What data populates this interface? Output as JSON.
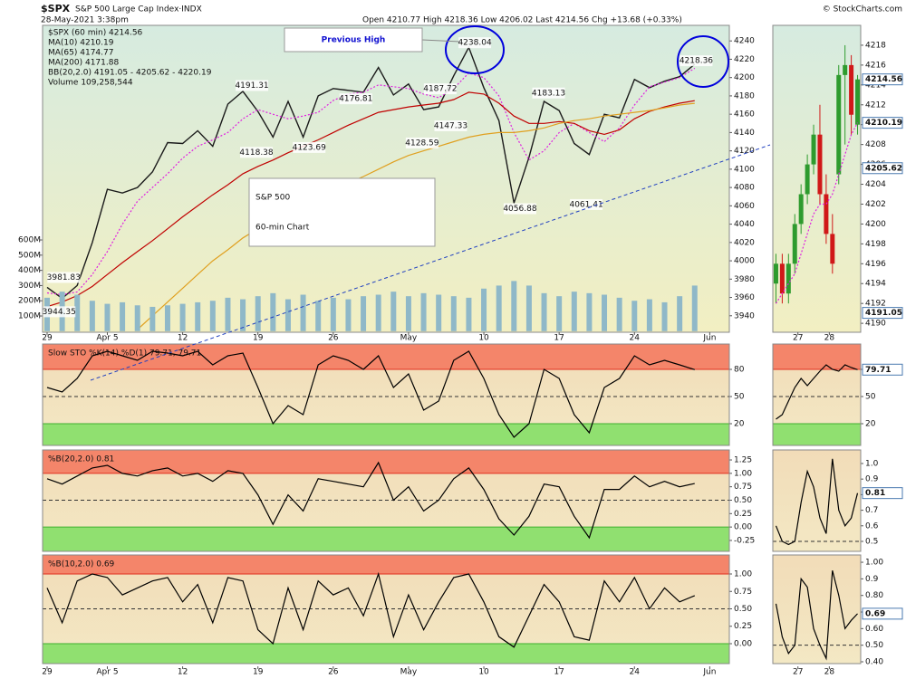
{
  "chart_data": [
    {
      "type": "line",
      "title": "$SPX",
      "subtitle": "S&P 500 Large Cap Index·INDX",
      "date": "28-May-2021 3:38pm",
      "quote": "Open 4210.77  High 4218.36  Low 4206.02  Last 4214.56  Chg +13.68 (+0.33%)",
      "credit": "© StockCharts.com",
      "bb_label": "BB(20,2.0) 4191.05 - 4205.62 - 4220.19",
      "callouts": [
        "Previous High",
        "S&P 500",
        "60-min Chart"
      ],
      "x": [
        0,
        1,
        2,
        3,
        4,
        5,
        6,
        7,
        8,
        9,
        10,
        11,
        12,
        13,
        14,
        15,
        16,
        17,
        18,
        19,
        20,
        21,
        22,
        23,
        24,
        25,
        26,
        27,
        28,
        29,
        30,
        31,
        32,
        33,
        34,
        35,
        36,
        37,
        38,
        39,
        40,
        41,
        42,
        43
      ],
      "xlim": [
        -0.3,
        45.3
      ],
      "xticks": [
        {
          "value": 0,
          "label": "29"
        },
        {
          "value": 4,
          "label": "Apr 5"
        },
        {
          "value": 9,
          "label": "12"
        },
        {
          "value": 14,
          "label": "19"
        },
        {
          "value": 19,
          "label": "26"
        },
        {
          "value": 24,
          "label": "May"
        },
        {
          "value": 29,
          "label": "10"
        },
        {
          "value": 34,
          "label": "17"
        },
        {
          "value": 39,
          "label": "24"
        },
        {
          "value": 44,
          "label": "Jun"
        }
      ],
      "ylim": [
        3922,
        4257
      ],
      "yticks": [
        3940,
        3960,
        3980,
        4000,
        4020,
        4040,
        4060,
        4080,
        4100,
        4120,
        4140,
        4160,
        4180,
        4200,
        4220,
        4240
      ],
      "y2lim": [
        -7000000,
        2011000000
      ],
      "y2ticks": [
        {
          "value": 100000000,
          "label": "100M"
        },
        {
          "value": 200000000,
          "label": "200M"
        },
        {
          "value": 300000000,
          "label": "300M"
        },
        {
          "value": 400000000,
          "label": "400M"
        },
        {
          "value": 500000000,
          "label": "500M"
        },
        {
          "value": 600000000,
          "label": "600M"
        }
      ],
      "series": [
        {
          "name": "$SPX (60 min) 4214.56",
          "color": "#1a1a1a",
          "values": [
            3971,
            3959,
            3973,
            4020,
            4078,
            4074,
            4080,
            4097,
            4129,
            4128,
            4142,
            4125,
            4171,
            4185,
            4163,
            4135,
            4174,
            4135,
            4180,
            4188,
            4186,
            4184,
            4211,
            4181,
            4193,
            4165,
            4168,
            4202,
            4233,
            4189,
            4153,
            4063,
            4113,
            4174,
            4164,
            4128,
            4116,
            4160,
            4156,
            4198,
            4189,
            4196,
            4201,
            4214.56
          ]
        },
        {
          "name": "MA(10) 4210.19",
          "color": "#e020e0",
          "style": "dotted",
          "values": [
            3965,
            3963,
            3966,
            3985,
            4010,
            4040,
            4065,
            4080,
            4095,
            4112,
            4125,
            4132,
            4140,
            4155,
            4165,
            4160,
            4155,
            4158,
            4162,
            4175,
            4182,
            4184,
            4192,
            4190,
            4188,
            4182,
            4178,
            4188,
            4205,
            4200,
            4180,
            4140,
            4110,
            4120,
            4140,
            4150,
            4140,
            4130,
            4145,
            4170,
            4190,
            4195,
            4200,
            4210.19
          ]
        },
        {
          "name": "MA(65) 4174.77",
          "color": "#c00000",
          "values": [
            3950,
            3955,
            3962,
            3972,
            3985,
            3998,
            4010,
            4022,
            4035,
            4048,
            4060,
            4072,
            4083,
            4095,
            4103,
            4110,
            4118,
            4125,
            4132,
            4140,
            4148,
            4155,
            4162,
            4165,
            4168,
            4170,
            4172,
            4176,
            4184,
            4182,
            4172,
            4158,
            4150,
            4150,
            4152,
            4150,
            4142,
            4138,
            4143,
            4155,
            4163,
            4168,
            4172,
            4174.77
          ]
        },
        {
          "name": "MA(200) 4171.88",
          "color": "#e0a020",
          "values": [
            null,
            null,
            null,
            null,
            null,
            null,
            3925,
            3940,
            3955,
            3970,
            3985,
            4000,
            4012,
            4025,
            4035,
            4045,
            4055,
            4062,
            4070,
            4078,
            4085,
            4092,
            4100,
            4108,
            4115,
            4120,
            4125,
            4130,
            4135,
            4138,
            4140,
            4140,
            4142,
            4145,
            4150,
            4153,
            4155,
            4158,
            4160,
            4162,
            4164,
            4167,
            4170,
            4171.88
          ]
        },
        {
          "name": "Volume 109,258,544",
          "color": "#2080c0",
          "bar_color": "#8fb8c8",
          "kind": "bar",
          "axis": "y2",
          "values": [
            220000000,
            260000000,
            240000000,
            200000000,
            180000000,
            190000000,
            170000000,
            160000000,
            170000000,
            180000000,
            190000000,
            200000000,
            220000000,
            210000000,
            230000000,
            250000000,
            210000000,
            240000000,
            200000000,
            220000000,
            210000000,
            230000000,
            240000000,
            260000000,
            230000000,
            250000000,
            240000000,
            230000000,
            220000000,
            280000000,
            300000000,
            330000000,
            300000000,
            250000000,
            230000000,
            260000000,
            250000000,
            240000000,
            220000000,
            200000000,
            210000000,
            190000000,
            230000000,
            300000000
          ]
        }
      ],
      "annotations": [
        {
          "x": 1.1,
          "y": 3981.83,
          "label": "3981.83"
        },
        {
          "x": 0.8,
          "y": 3944.35,
          "label": "3944.35"
        },
        {
          "x": 13.6,
          "y": 4191.31,
          "label": "4191.31"
        },
        {
          "x": 13.9,
          "y": 4118.38,
          "label": "4118.38"
        },
        {
          "x": 17.4,
          "y": 4123.69,
          "label": "4123.69"
        },
        {
          "x": 20.5,
          "y": 4176.81,
          "label": "4176.81"
        },
        {
          "x": 26.1,
          "y": 4187.72,
          "label": "4187.72"
        },
        {
          "x": 24.9,
          "y": 4128.59,
          "label": "4128.59"
        },
        {
          "x": 26.8,
          "y": 4147.33,
          "label": "4147.33"
        },
        {
          "x": 28.4,
          "y": 4238.04,
          "label": "4238.04"
        },
        {
          "x": 33.3,
          "y": 4183.13,
          "label": "4183.13"
        },
        {
          "x": 31.4,
          "y": 4056.88,
          "label": "4056.88"
        },
        {
          "x": 35.8,
          "y": 4061.41,
          "label": "4061.41"
        },
        {
          "x": 43.1,
          "y": 4218.36,
          "label": "4218.36"
        }
      ]
    },
    {
      "type": "line",
      "title": "Slow STO %K(14) %D(1) 79.71, 79.71",
      "ylim": [
        -4,
        108
      ],
      "yticks": [
        20,
        50,
        80
      ],
      "midline": 50,
      "zones": [
        {
          "above": 80,
          "color": "#f4856a",
          "border": "#e03020"
        },
        {
          "below": 20,
          "color": "#90e070",
          "border": "#40b030"
        }
      ],
      "series": [
        {
          "name": "%K",
          "color": "#000000",
          "values": [
            60,
            55,
            70,
            95,
            100,
            95,
            90,
            100,
            98,
            95,
            100,
            85,
            95,
            98,
            60,
            20,
            40,
            30,
            85,
            95,
            90,
            80,
            95,
            60,
            75,
            35,
            45,
            90,
            100,
            70,
            30,
            5,
            20,
            80,
            70,
            30,
            10,
            60,
            70,
            95,
            85,
            90,
            85,
            79.71
          ]
        }
      ]
    },
    {
      "type": "line",
      "title": "%B(20,2.0) 0.81",
      "ylim": [
        -0.453,
        1.436
      ],
      "yticks": [
        1.25,
        {
          "value": 1,
          "label": "1.00"
        },
        0.75,
        {
          "value": 0.5,
          "label": "0.50"
        },
        0.25,
        {
          "value": 0,
          "label": "0.00"
        },
        -0.25
      ],
      "midline": 0.5,
      "zones": [
        {
          "above": 1,
          "color": "#f4856a",
          "border": "#e03020"
        },
        {
          "below": 0,
          "color": "#90e070",
          "border": "#40b030"
        }
      ],
      "series": [
        {
          "name": "%B",
          "color": "#000000",
          "values": [
            0.9,
            0.8,
            0.95,
            1.1,
            1.15,
            1.0,
            0.95,
            1.05,
            1.1,
            0.95,
            1.0,
            0.85,
            1.05,
            1.0,
            0.6,
            0.05,
            0.6,
            0.3,
            0.9,
            0.85,
            0.8,
            0.75,
            1.2,
            0.5,
            0.75,
            0.3,
            0.5,
            0.9,
            1.1,
            0.7,
            0.15,
            -0.15,
            0.2,
            0.8,
            0.75,
            0.2,
            -0.2,
            0.7,
            0.7,
            0.95,
            0.75,
            0.85,
            0.75,
            0.81
          ]
        }
      ]
    },
    {
      "type": "line",
      "title": "%B(10,2.0) 0.69",
      "ylim": [
        -0.286,
        1.273
      ],
      "yticks": [
        {
          "value": 1,
          "label": "1.00"
        },
        0.75,
        {
          "value": 0.5,
          "label": "0.50"
        },
        0.25,
        {
          "value": 0,
          "label": "0.00"
        }
      ],
      "midline": 0.5,
      "zones": [
        {
          "above": 1,
          "color": "#f4856a",
          "border": "#e03020"
        },
        {
          "below": 0,
          "color": "#90e070",
          "border": "#40b030"
        }
      ],
      "series": [
        {
          "name": "%B",
          "color": "#000000",
          "values": [
            0.8,
            0.3,
            0.9,
            1.0,
            0.95,
            0.7,
            0.8,
            0.9,
            0.95,
            0.6,
            0.85,
            0.3,
            0.95,
            0.9,
            0.2,
            0.0,
            0.8,
            0.2,
            0.9,
            0.7,
            0.8,
            0.4,
            1.0,
            0.1,
            0.7,
            0.2,
            0.6,
            0.95,
            1.0,
            0.6,
            0.1,
            -0.05,
            0.4,
            0.85,
            0.6,
            0.1,
            0.05,
            0.9,
            0.6,
            0.95,
            0.5,
            0.8,
            0.6,
            0.69
          ]
        }
      ]
    },
    {
      "type": "candlestick",
      "x": [
        0,
        1,
        2,
        3,
        4,
        5,
        6,
        7,
        8,
        9,
        10,
        11,
        12,
        13
      ],
      "xlim": [
        -0.5,
        13.5
      ],
      "xticks": [
        {
          "value": 3.5,
          "label": "27"
        },
        {
          "value": 8.5,
          "label": "28"
        }
      ],
      "ylim": [
        4189.1,
        4220
      ],
      "yticks": [
        4190,
        4192,
        4194,
        4196,
        4198,
        4200,
        4202,
        4204,
        4206,
        4208,
        4210,
        4212,
        4214,
        4216,
        4218
      ],
      "up_color": "#2e9b2e",
      "down_color": "#d01818",
      "open": [
        4194,
        4196,
        4193,
        4196,
        4200,
        4203,
        4206,
        4209,
        4203,
        4199,
        4205,
        4215,
        4216,
        4210
      ],
      "high": [
        4197,
        4197,
        4197,
        4201,
        4204,
        4207,
        4210,
        4212,
        4205,
        4201,
        4216,
        4218,
        4217,
        4215
      ],
      "low": [
        4192,
        4192,
        4192,
        4195,
        4199,
        4202,
        4205,
        4202,
        4198,
        4195,
        4204,
        4208,
        4209,
        4209
      ],
      "close": [
        4196,
        4193,
        4196,
        4200,
        4203,
        4206,
        4209,
        4203,
        4199,
        4196,
        4215,
        4216,
        4211,
        4214.56
      ],
      "series": [
        {
          "name": "MA(10)",
          "color": "#e020e0",
          "style": "dotted",
          "values": [
            4192,
            4193,
            4194,
            4195,
            4197,
            4199,
            4201,
            4202,
            4202,
            4203,
            4205,
            4207,
            4209,
            4210.19
          ]
        }
      ],
      "side_labels": [
        {
          "y": 4214.56,
          "label": "4214.56"
        },
        {
          "y": 4210.19,
          "label": "4210.19"
        },
        {
          "y": 4205.62,
          "label": "4205.62"
        },
        {
          "y": 4191.05,
          "label": "4191.05"
        }
      ]
    },
    {
      "type": "line",
      "ylim": [
        -4,
        108
      ],
      "yticks": [
        20,
        50,
        80
      ],
      "midline": 50,
      "zones": [
        {
          "above": 80,
          "color": "#f4856a",
          "border": "#e03020"
        },
        {
          "below": 20,
          "color": "#90e070",
          "border": "#40b030"
        }
      ],
      "series": [
        {
          "name": "%K",
          "color": "#000000",
          "values": [
            25,
            30,
            45,
            60,
            70,
            62,
            70,
            78,
            85,
            80,
            78,
            85,
            82,
            79.71
          ]
        }
      ],
      "side_labels": [
        {
          "y": 79.71,
          "label": "79.71"
        }
      ]
    },
    {
      "type": "line",
      "ylim": [
        0.436,
        1.087
      ],
      "yticks": [
        {
          "value": 1,
          "label": "1.0"
        },
        0.9,
        0.8,
        0.7,
        0.6,
        0.5
      ],
      "midline": 0.5,
      "series": [
        {
          "name": "%B",
          "color": "#000000",
          "values": [
            0.6,
            0.5,
            0.48,
            0.5,
            0.75,
            0.95,
            0.85,
            0.65,
            0.55,
            1.03,
            0.7,
            0.6,
            0.65,
            0.81
          ]
        }
      ],
      "side_labels": [
        {
          "y": 0.81,
          "label": "0.81"
        }
      ]
    },
    {
      "type": "line",
      "ylim": [
        0.389,
        1.044
      ],
      "yticks": [
        {
          "value": 1,
          "label": "1.00"
        },
        0.9,
        {
          "value": 0.8,
          "label": "0.80"
        },
        0.7,
        {
          "value": 0.6,
          "label": "0.60"
        },
        {
          "value": 0.5,
          "label": "0.50"
        },
        {
          "value": 0.4,
          "label": "0.40"
        }
      ],
      "midline": 0.5,
      "series": [
        {
          "name": "%B",
          "color": "#000000",
          "values": [
            0.75,
            0.55,
            0.45,
            0.5,
            0.9,
            0.85,
            0.6,
            0.5,
            0.42,
            0.95,
            0.8,
            0.6,
            0.65,
            0.69
          ]
        }
      ],
      "side_labels": [
        {
          "y": 0.69,
          "label": "0.69"
        }
      ]
    }
  ]
}
